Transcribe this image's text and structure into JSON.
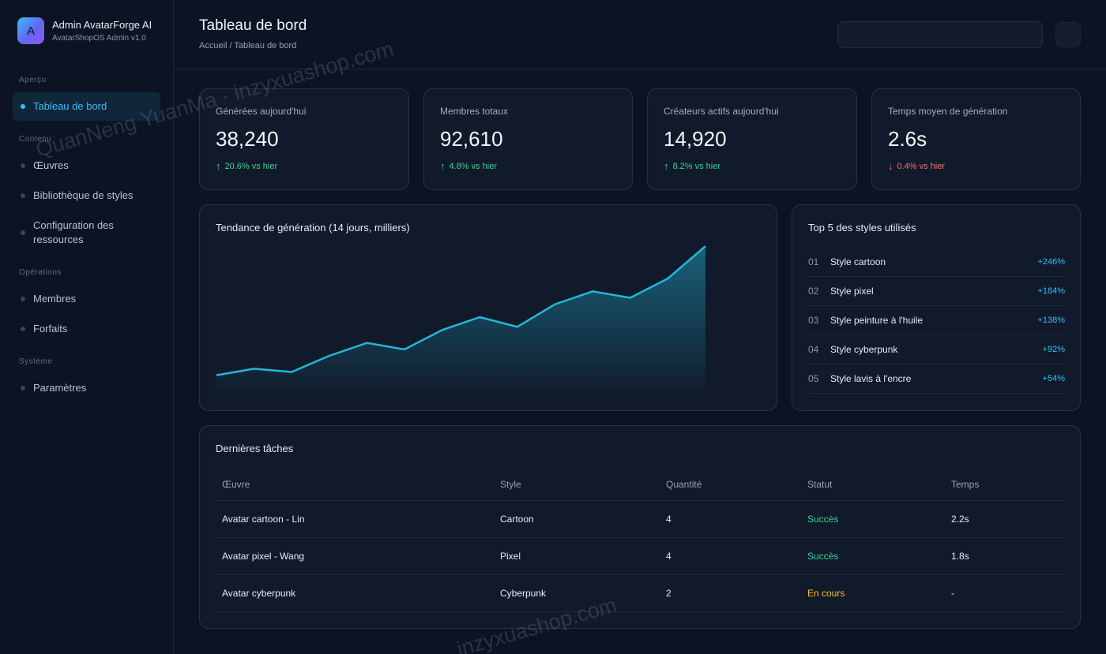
{
  "brand": {
    "logo_letter": "A",
    "title": "Admin AvatarForge AI",
    "subtitle": "AvatarShopOS Admin v1.0"
  },
  "sidebar": {
    "sections": [
      "Aperçu",
      "Contenu",
      "Opérations",
      "Système"
    ],
    "items": [
      {
        "label": "Tableau de bord",
        "active": true
      },
      {
        "label": "Œuvres"
      },
      {
        "label": "Bibliothèque de styles"
      },
      {
        "label": "Configuration des ressources"
      },
      {
        "label": "Membres"
      },
      {
        "label": "Forfaits"
      },
      {
        "label": "Paramètres"
      }
    ]
  },
  "header": {
    "title": "Tableau de bord",
    "breadcrumb": "Accueil / Tableau de bord",
    "search_value": ""
  },
  "stats": [
    {
      "label": "Générées aujourd'hui",
      "value": "38,240",
      "delta": "20.6% vs hier",
      "direction": "up"
    },
    {
      "label": "Membres totaux",
      "value": "92,610",
      "delta": "4.8% vs hier",
      "direction": "up"
    },
    {
      "label": "Créateurs actifs aujourd'hui",
      "value": "14,920",
      "delta": "8.2% vs hier",
      "direction": "up"
    },
    {
      "label": "Temps moyen de génération",
      "value": "2.6s",
      "delta": "0.4% vs hier",
      "direction": "down"
    }
  ],
  "trend": {
    "title": "Tendance de génération (14 jours, milliers)"
  },
  "chart_data": {
    "type": "area",
    "title": "Tendance de génération (14 jours, milliers)",
    "x": [
      1,
      2,
      3,
      4,
      5,
      6,
      7,
      8,
      9,
      10,
      11,
      12,
      13,
      14
    ],
    "series": [
      {
        "values": [
          5,
          7,
          6,
          11,
          15,
          13,
          19,
          23,
          20,
          27,
          31,
          29,
          35,
          45
        ]
      }
    ],
    "ylim": [
      0,
      46
    ],
    "grid": false,
    "color": "#22b8d8"
  },
  "top_styles": {
    "title": "Top 5 des styles utilisés",
    "rows": [
      {
        "rank": "01",
        "name": "Style cartoon",
        "pct": "+246%"
      },
      {
        "rank": "02",
        "name": "Style pixel",
        "pct": "+184%"
      },
      {
        "rank": "03",
        "name": "Style peinture à l'huile",
        "pct": "+138%"
      },
      {
        "rank": "04",
        "name": "Style cyberpunk",
        "pct": "+92%"
      },
      {
        "rank": "05",
        "name": "Style lavis à l'encre",
        "pct": "+54%"
      }
    ]
  },
  "tasks": {
    "title": "Dernières tâches",
    "columns": [
      "Œuvre",
      "Style",
      "Quantité",
      "Statut",
      "Temps"
    ],
    "rows": [
      {
        "work": "Avatar cartoon - Lin",
        "style": "Cartoon",
        "qty": "4",
        "status": "Succès",
        "status_kind": "ok",
        "time": "2.2s"
      },
      {
        "work": "Avatar pixel - Wang",
        "style": "Pixel",
        "qty": "4",
        "status": "Succès",
        "status_kind": "ok",
        "time": "1.8s"
      },
      {
        "work": "Avatar cyberpunk",
        "style": "Cyberpunk",
        "qty": "2",
        "status": "En cours",
        "status_kind": "running",
        "time": "-"
      }
    ]
  },
  "watermarks": [
    "QuanNeng YuanMa · inzyxuashop.com",
    "inzyxuashop.com"
  ],
  "colors": {
    "accent": "#38bdf8",
    "up": "#34d399",
    "down": "#f87171",
    "running": "#fbbf24",
    "background": "#0c1424"
  }
}
